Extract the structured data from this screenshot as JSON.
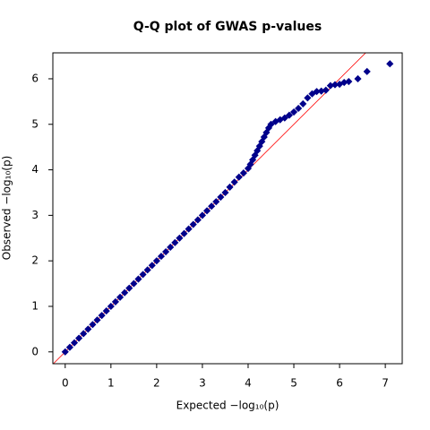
{
  "chart_data": {
    "type": "scatter",
    "title": "Q-Q plot of GWAS p-values",
    "xlabel": "Expected  −log₁₀(p)",
    "ylabel": "Observed  −log₁₀(p)",
    "x": [
      0.0,
      0.1,
      0.2,
      0.3,
      0.4,
      0.5,
      0.6,
      0.7,
      0.8,
      0.9,
      1.0,
      1.1,
      1.2,
      1.3,
      1.4,
      1.5,
      1.6,
      1.7,
      1.8,
      1.9,
      2.0,
      2.1,
      2.2,
      2.3,
      2.4,
      2.5,
      2.6,
      2.7,
      2.8,
      2.9,
      3.0,
      3.1,
      3.2,
      3.3,
      3.4,
      3.5,
      3.6,
      3.7,
      3.8,
      3.9,
      4.0,
      4.05,
      4.1,
      4.15,
      4.2,
      4.25,
      4.3,
      4.35,
      4.4,
      4.45,
      4.5,
      4.6,
      4.7,
      4.8,
      4.9,
      5.0,
      5.1,
      5.2,
      5.3,
      5.4,
      5.5,
      5.6,
      5.7,
      5.8,
      5.9,
      6.0,
      6.1,
      6.2,
      6.4,
      6.6,
      7.1
    ],
    "values": [
      0.0,
      0.1,
      0.2,
      0.3,
      0.4,
      0.5,
      0.6,
      0.7,
      0.8,
      0.9,
      1.0,
      1.1,
      1.2,
      1.3,
      1.4,
      1.5,
      1.6,
      1.7,
      1.8,
      1.9,
      2.0,
      2.1,
      2.2,
      2.3,
      2.4,
      2.5,
      2.6,
      2.7,
      2.8,
      2.9,
      3.0,
      3.1,
      3.2,
      3.3,
      3.4,
      3.5,
      3.62,
      3.73,
      3.84,
      3.93,
      4.03,
      4.12,
      4.22,
      4.32,
      4.42,
      4.52,
      4.62,
      4.72,
      4.82,
      4.92,
      5.0,
      5.06,
      5.1,
      5.14,
      5.2,
      5.27,
      5.35,
      5.45,
      5.58,
      5.67,
      5.72,
      5.73,
      5.75,
      5.85,
      5.87,
      5.88,
      5.92,
      5.94,
      6.0,
      6.16,
      6.33
    ],
    "color": "#00008b",
    "reference_line": {
      "color": "#ff0000"
    },
    "xlim": [
      -0.27,
      7.37
    ],
    "ylim": [
      -0.26,
      6.57
    ],
    "xticks": [
      0,
      1,
      2,
      3,
      4,
      5,
      6,
      7
    ],
    "yticks": [
      0,
      1,
      2,
      3,
      4,
      5,
      6
    ]
  }
}
